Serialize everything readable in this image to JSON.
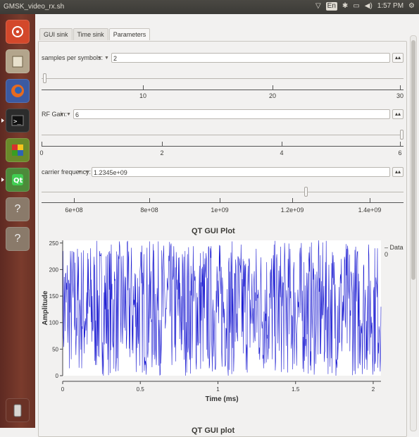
{
  "window": {
    "title": "GMSK_video_rx.sh"
  },
  "tray": {
    "kbd": "En",
    "time": "1:57 PM"
  },
  "tabs": [
    "GUI sink",
    "Time sink",
    "Parameters"
  ],
  "params": {
    "sps": {
      "label": "samples per symbols:",
      "value": "2",
      "ticks": [
        "10",
        "20",
        "30"
      ],
      "min": 0,
      "max": 30,
      "current": 2
    },
    "rf": {
      "label": "RF Gain:",
      "value": "6",
      "ticks": [
        "0",
        "2",
        "4",
        "6"
      ],
      "min": 0,
      "max": 6,
      "current": 6
    },
    "cf": {
      "label": "carrier frequency:",
      "value": "1.2345e+09",
      "ticks": [
        "6e+08",
        "8e+08",
        "1e+09",
        "1.2e+09",
        "1.4e+09"
      ]
    }
  },
  "plot": {
    "title": "QT GUI Plot",
    "legend": "Data 0",
    "next_title": "QT GUI plot"
  },
  "chart_data": {
    "type": "line",
    "title": "QT GUI Plot",
    "xlabel": "Time (ms)",
    "ylabel": "Amplitude",
    "xlim": [
      0,
      2.05
    ],
    "ylim": [
      0,
      255
    ],
    "xticks": [
      "0",
      "0.5",
      "1",
      "1.5",
      "2"
    ],
    "yticks": [
      "0",
      "50",
      "100",
      "150",
      "200",
      "250"
    ],
    "series": [
      {
        "name": "Data 0",
        "color": "#1e1ed2",
        "values": "dense random byte samples between 0 and 255"
      }
    ]
  },
  "colors": {
    "launcher": "#7a3b2c",
    "accent": "#1e1ed2"
  }
}
